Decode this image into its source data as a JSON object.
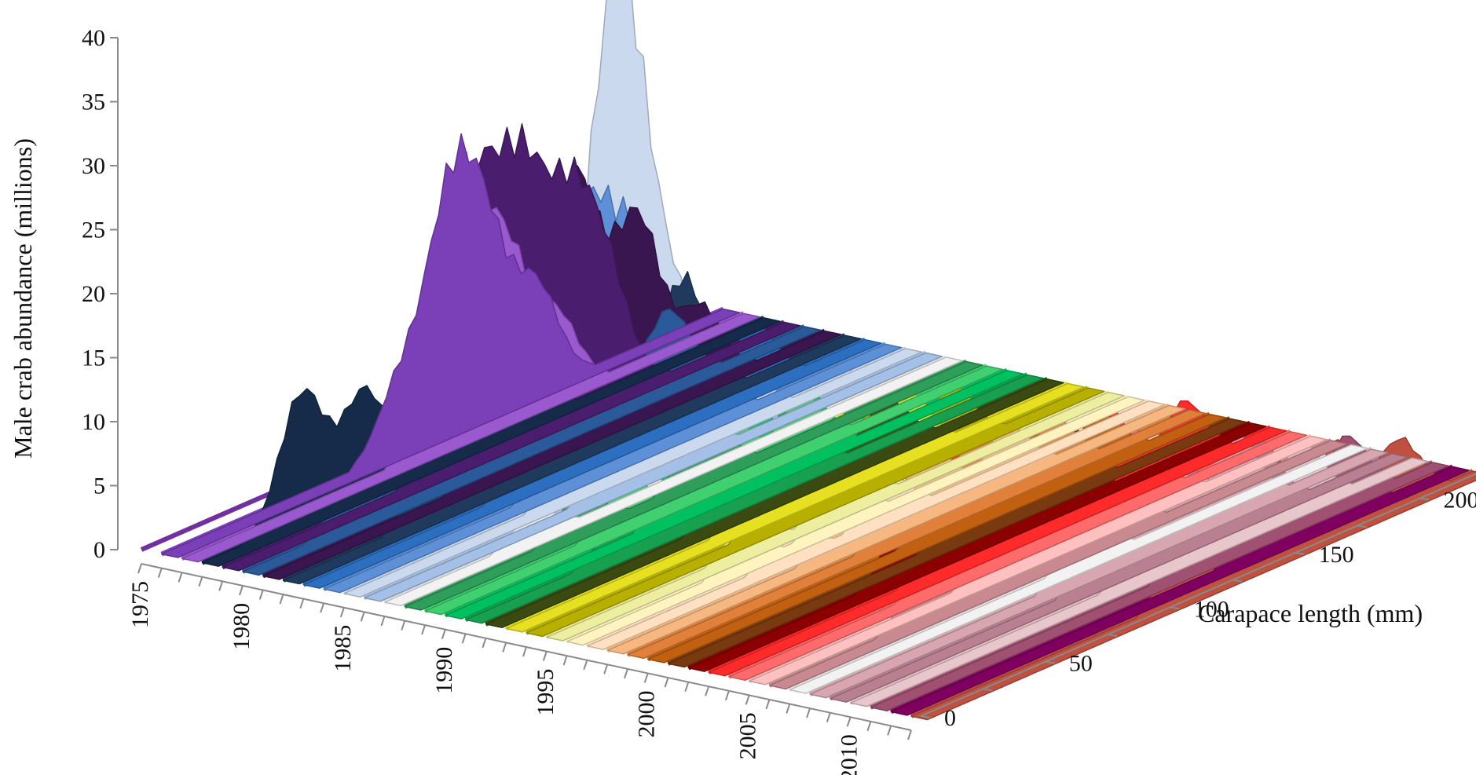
{
  "chart_data": {
    "type": "area",
    "subtype": "3d-surface",
    "title": "",
    "zlabel": "Male crab abundance (millions)",
    "ylabel": "Carapace length (mm)",
    "zlim": [
      0,
      40
    ],
    "z_ticks": [
      "0",
      "5",
      "10",
      "15",
      "20",
      "25",
      "30",
      "35",
      "40"
    ],
    "x_ticks": [
      "1975",
      "1980",
      "1985",
      "1990",
      "1995",
      "2000",
      "2005",
      "2010"
    ],
    "y_ticks": [
      "0",
      "50",
      "100",
      "150",
      "200"
    ],
    "grid": false,
    "legend": "none",
    "series": [
      {
        "year": 1975,
        "color": "#7030a0",
        "peaks": []
      },
      {
        "year": 1976,
        "color": "#7b3fb8",
        "peaks": [
          [
            95,
            5
          ],
          [
            115,
            17
          ],
          [
            130,
            12
          ],
          [
            150,
            8
          ]
        ]
      },
      {
        "year": 1977,
        "color": "#9b59d0",
        "peaks": [
          [
            110,
            20
          ],
          [
            130,
            12
          ],
          [
            150,
            6
          ]
        ]
      },
      {
        "year": 1978,
        "color": "#162a4a",
        "peaks": [
          [
            40,
            10
          ],
          [
            65,
            8
          ],
          [
            95,
            4
          ],
          [
            115,
            6
          ],
          [
            130,
            4
          ]
        ]
      },
      {
        "year": 1979,
        "color": "#4a1d6e",
        "peaks": [
          [
            100,
            20
          ],
          [
            120,
            19
          ],
          [
            140,
            15
          ],
          [
            155,
            8
          ]
        ]
      },
      {
        "year": 1980,
        "color": "#2a5a9a",
        "peaks": [
          [
            45,
            4
          ],
          [
            75,
            3
          ],
          [
            110,
            6
          ],
          [
            140,
            8
          ],
          [
            170,
            6
          ]
        ]
      },
      {
        "year": 1981,
        "color": "#3a1650",
        "peaks": [
          [
            100,
            18
          ],
          [
            125,
            20
          ],
          [
            150,
            15
          ],
          [
            175,
            6
          ]
        ]
      },
      {
        "year": 1982,
        "color": "#1f3a5c",
        "peaks": [
          [
            60,
            5
          ],
          [
            95,
            8
          ],
          [
            130,
            14
          ],
          [
            160,
            10
          ]
        ]
      },
      {
        "year": 1983,
        "color": "#2c6fc0",
        "peaks": [
          [
            95,
            8
          ],
          [
            120,
            10
          ],
          [
            150,
            9
          ],
          [
            180,
            5
          ]
        ]
      },
      {
        "year": 1984,
        "color": "#5e90d8",
        "peaks": [
          [
            105,
            20
          ],
          [
            125,
            15
          ],
          [
            150,
            8
          ]
        ]
      },
      {
        "year": 1985,
        "color": "#cbd9ee",
        "peaks": [
          [
            110,
            40
          ],
          [
            135,
            8
          ],
          [
            160,
            4
          ]
        ]
      },
      {
        "year": 1986,
        "color": "#a5c0e6",
        "peaks": [
          [
            100,
            3
          ],
          [
            130,
            3
          ]
        ]
      },
      {
        "year": 1987,
        "color": "#ffffff",
        "peaks": [
          [
            60,
            2
          ]
        ]
      },
      {
        "year": 1988,
        "color": "#2e9e5a",
        "peaks": [
          [
            70,
            3
          ],
          [
            120,
            5
          ]
        ]
      },
      {
        "year": 1989,
        "color": "#40d070",
        "peaks": [
          [
            80,
            4
          ],
          [
            120,
            6
          ],
          [
            150,
            4
          ]
        ]
      },
      {
        "year": 1990,
        "color": "#00c060",
        "peaks": [
          [
            95,
            5
          ],
          [
            120,
            7
          ],
          [
            145,
            5
          ]
        ]
      },
      {
        "year": 1991,
        "color": "#16a050",
        "peaks": [
          [
            60,
            2
          ],
          [
            100,
            5
          ],
          [
            130,
            6
          ]
        ]
      },
      {
        "year": 1992,
        "color": "#3a4a10",
        "peaks": [
          [
            100,
            5
          ],
          [
            130,
            6
          ],
          [
            160,
            4
          ]
        ]
      },
      {
        "year": 1993,
        "color": "#e6e020",
        "peaks": [
          [
            100,
            4
          ],
          [
            130,
            6
          ],
          [
            160,
            5
          ]
        ]
      },
      {
        "year": 1994,
        "color": "#b8b000",
        "peaks": [
          [
            100,
            4
          ],
          [
            140,
            6
          ],
          [
            170,
            5
          ]
        ]
      },
      {
        "year": 1995,
        "color": "#eeeea0",
        "peaks": [
          [
            80,
            2
          ],
          [
            120,
            4
          ]
        ]
      },
      {
        "year": 1996,
        "color": "#fff4c0",
        "peaks": [
          [
            70,
            2
          ],
          [
            110,
            3
          ]
        ]
      },
      {
        "year": 1997,
        "color": "#ffe0c0",
        "peaks": [
          [
            80,
            2
          ],
          [
            120,
            3
          ]
        ]
      },
      {
        "year": 1998,
        "color": "#f6b880",
        "peaks": [
          [
            100,
            9
          ],
          [
            130,
            5
          ],
          [
            160,
            4
          ]
        ]
      },
      {
        "year": 1999,
        "color": "#e0803a",
        "peaks": [
          [
            110,
            4
          ],
          [
            140,
            6
          ],
          [
            170,
            4
          ]
        ]
      },
      {
        "year": 2000,
        "color": "#c06010",
        "peaks": [
          [
            120,
            4
          ],
          [
            150,
            5
          ],
          [
            180,
            4
          ]
        ]
      },
      {
        "year": 2001,
        "color": "#7a3a10",
        "peaks": [
          [
            120,
            4
          ],
          [
            160,
            5
          ]
        ]
      },
      {
        "year": 2002,
        "color": "#8b0000",
        "peaks": [
          [
            90,
            7
          ],
          [
            120,
            6
          ],
          [
            150,
            6
          ]
        ]
      },
      {
        "year": 2003,
        "color": "#ff2a2a",
        "peaks": [
          [
            100,
            9
          ],
          [
            130,
            8
          ],
          [
            160,
            7
          ],
          [
            190,
            5
          ]
        ]
      },
      {
        "year": 2004,
        "color": "#ff6a6a",
        "peaks": [
          [
            90,
            8
          ],
          [
            130,
            7
          ],
          [
            160,
            6
          ]
        ]
      },
      {
        "year": 2005,
        "color": "#ffc0c0",
        "peaks": [
          [
            100,
            4
          ],
          [
            130,
            5
          ],
          [
            160,
            6
          ]
        ]
      },
      {
        "year": 2006,
        "color": "#c88a90",
        "peaks": [
          [
            70,
            14
          ],
          [
            110,
            3
          ],
          [
            140,
            4
          ]
        ]
      },
      {
        "year": 2007,
        "color": "#ffffff",
        "peaks": [
          [
            120,
            3
          ]
        ]
      },
      {
        "year": 2008,
        "color": "#d8a6b0",
        "peaks": [
          [
            110,
            5
          ],
          [
            140,
            7
          ],
          [
            170,
            6
          ]
        ]
      },
      {
        "year": 2009,
        "color": "#b88090",
        "peaks": [
          [
            110,
            5
          ],
          [
            140,
            7
          ],
          [
            170,
            6
          ]
        ]
      },
      {
        "year": 2010,
        "color": "#e7c6cc",
        "peaks": [
          [
            120,
            4
          ],
          [
            150,
            6
          ],
          [
            180,
            5
          ]
        ]
      },
      {
        "year": 2011,
        "color": "#a05070",
        "peaks": [
          [
            130,
            4
          ],
          [
            160,
            6
          ],
          [
            190,
            5
          ]
        ]
      },
      {
        "year": 2012,
        "color": "#800060",
        "peaks": [
          [
            150,
            4
          ],
          [
            180,
            5
          ]
        ]
      },
      {
        "year": 2013,
        "color": "#c05040",
        "peaks": [
          [
            110,
            5
          ],
          [
            140,
            8
          ],
          [
            170,
            7
          ],
          [
            195,
            5
          ]
        ]
      }
    ]
  }
}
